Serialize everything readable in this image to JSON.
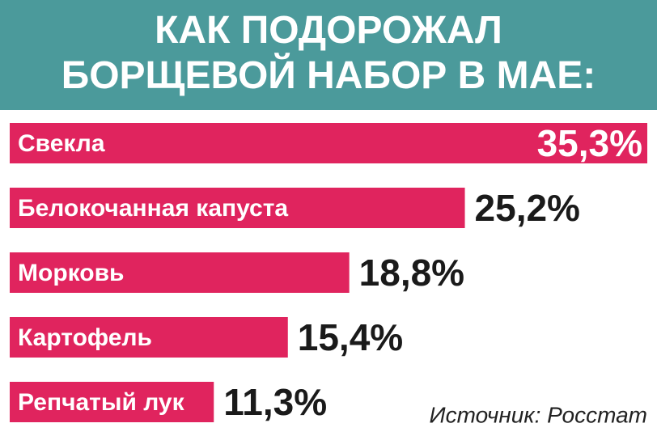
{
  "chart_data": {
    "type": "bar",
    "orientation": "horizontal",
    "title": "КАК ПОДОРОЖАЛ\nБОРЩЕВОЙ НАБОР В МАЕ:",
    "categories": [
      "Свекла",
      "Белокочанная капуста",
      "Морковь",
      "Картофель",
      "Репчатый лук"
    ],
    "values": [
      35.3,
      25.2,
      18.8,
      15.4,
      11.3
    ],
    "value_labels": [
      "35,3%",
      "25,2%",
      "18,8%",
      "15,4%",
      "11,3%"
    ],
    "color": "#e0245e",
    "source": "Источник: Росстат"
  }
}
